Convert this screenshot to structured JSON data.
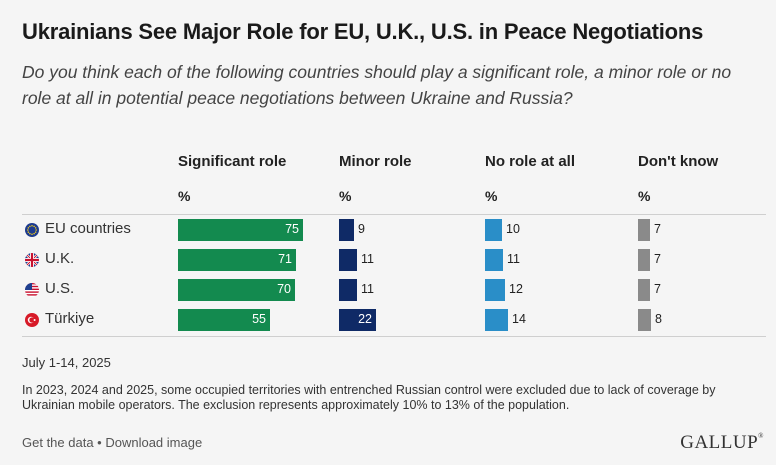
{
  "title": "Ukrainians See Major Role for EU, U.K., U.S. in Peace Negotiations",
  "subtitle": "Do you think each of the following countries should play a significant role, a minor role or no role at all in potential peace negotiations between Ukraine and Russia?",
  "pct_label": "%",
  "date": "July 1-14, 2025",
  "note": "In 2023, 2024 and 2025, some occupied territories with entrenched Russian control were excluded due to lack of coverage by Ukrainian mobile operators. The exclusion represents approximately 10% to 13% of the population.",
  "links": {
    "get_data": "Get the data",
    "separator": " • ",
    "download": "Download image"
  },
  "logo": {
    "text": "GALLUP",
    "mark": "®"
  },
  "colors": {
    "significant": "#138a4f",
    "minor": "#0f2a66",
    "none": "#2a8ec8",
    "dont_know": "#8a8a8a"
  },
  "chart_data": {
    "type": "bar",
    "layout": "grouped-columns-table",
    "title": "Ukrainians See Major Role for EU, U.K., U.S. in Peace Negotiations",
    "categories": [
      "EU countries",
      "U.K.",
      "U.S.",
      "Türkiye"
    ],
    "flags": [
      "eu-flag-icon",
      "uk-flag-icon",
      "us-flag-icon",
      "turkiye-flag-icon"
    ],
    "unit": "%",
    "series": [
      {
        "name": "Significant role",
        "values": [
          75,
          71,
          70,
          55
        ]
      },
      {
        "name": "Minor role",
        "values": [
          9,
          11,
          11,
          22
        ]
      },
      {
        "name": "No role at all",
        "values": [
          10,
          11,
          12,
          14
        ]
      },
      {
        "name": "Don't know",
        "values": [
          7,
          7,
          7,
          8
        ]
      }
    ]
  }
}
